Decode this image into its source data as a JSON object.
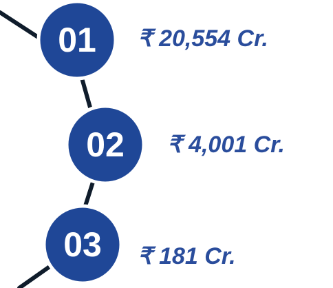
{
  "items": [
    {
      "number": "01",
      "amount": "₹ 20,554  Cr."
    },
    {
      "number": "02",
      "amount": "₹ 4,001  Cr."
    },
    {
      "number": "03",
      "amount": "₹ 181  Cr."
    }
  ]
}
